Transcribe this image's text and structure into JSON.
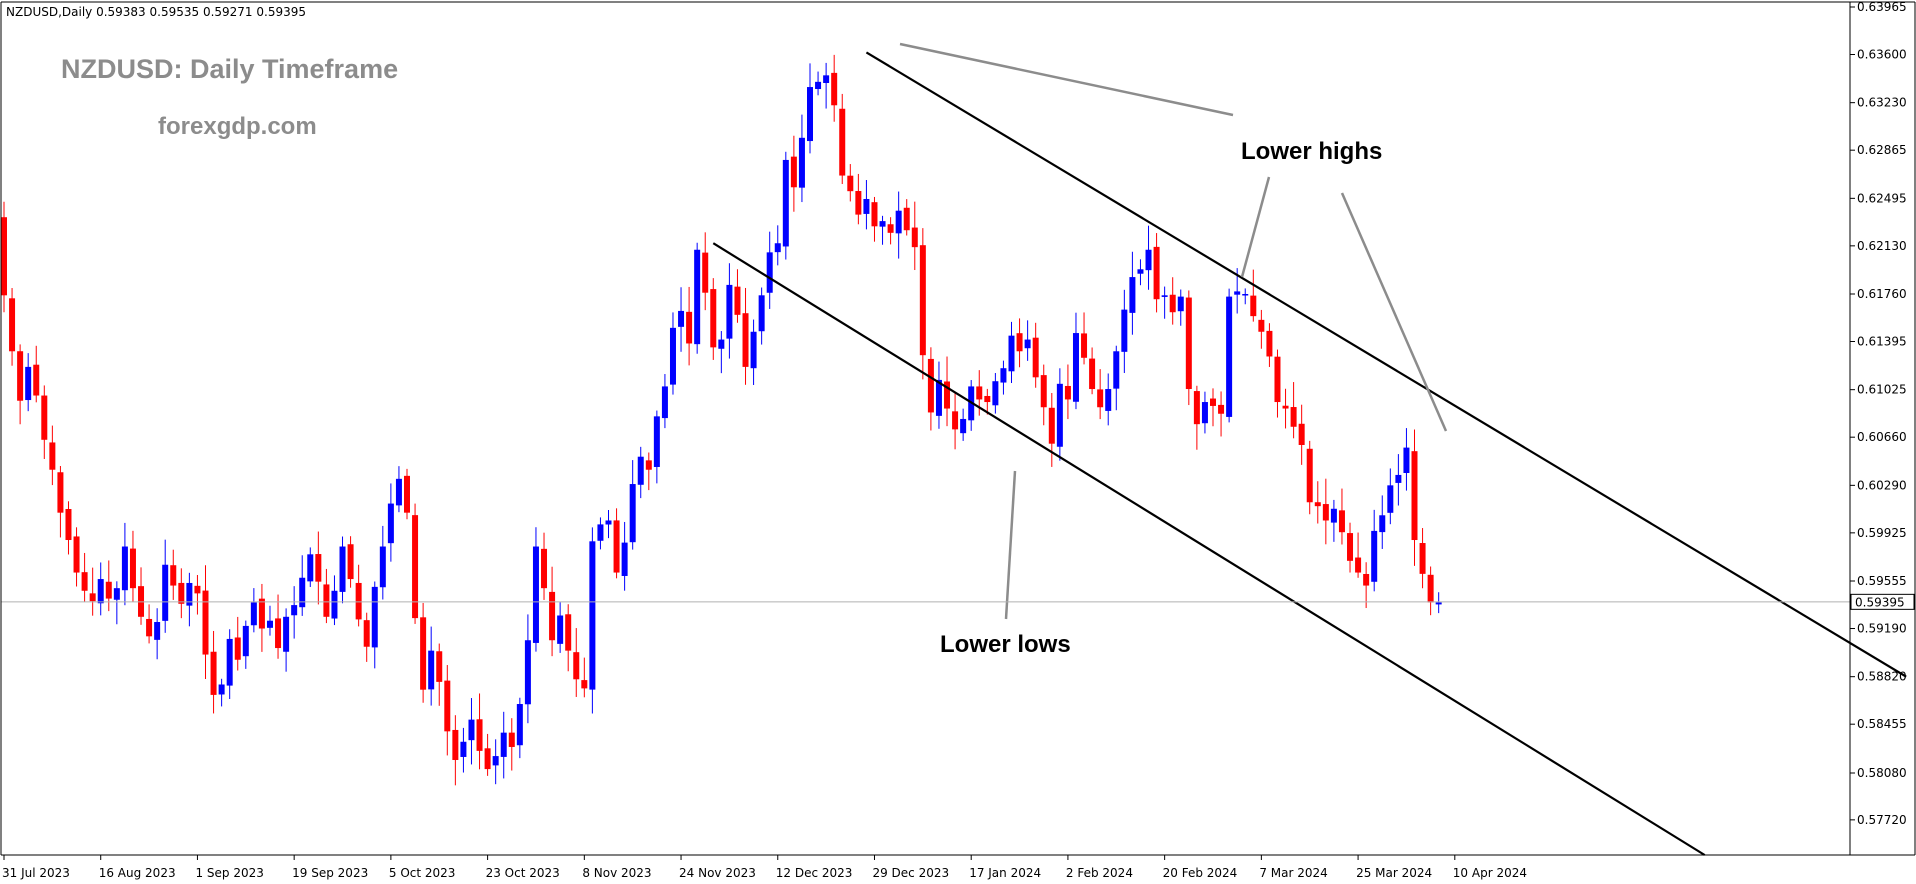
{
  "header": {
    "symbol_line": "NZDUSD,Daily  0.59383 0.59535 0.59271 0.59395"
  },
  "overlay": {
    "title": "NZDUSD: Daily Timeframe",
    "website": "forexgdp.com"
  },
  "chart_data": {
    "type": "candlestick",
    "symbol": "NZDUSD",
    "timeframe": "Daily",
    "ohlc_current": {
      "open": 0.59383,
      "high": 0.59535,
      "low": 0.59271,
      "close": 0.59395
    },
    "current_price_label": "0.59395",
    "ylim": [
      0.5745,
      0.63965
    ],
    "y_ticks": [
      "0.63965",
      "0.63600",
      "0.63230",
      "0.62865",
      "0.62495",
      "0.62130",
      "0.61760",
      "0.61395",
      "0.61025",
      "0.60660",
      "0.60290",
      "0.59925",
      "0.59555",
      "0.59190",
      "0.58820",
      "0.58455",
      "0.58080",
      "0.57720"
    ],
    "x_ticks": [
      {
        "label": "31 Jul 2023",
        "bar": 0
      },
      {
        "label": "16 Aug 2023",
        "bar": 12
      },
      {
        "label": "1 Sep 2023",
        "bar": 24
      },
      {
        "label": "19 Sep 2023",
        "bar": 36
      },
      {
        "label": "5 Oct 2023",
        "bar": 48
      },
      {
        "label": "23 Oct 2023",
        "bar": 60
      },
      {
        "label": "8 Nov 2023",
        "bar": 72
      },
      {
        "label": "24 Nov 2023",
        "bar": 84
      },
      {
        "label": "12 Dec 2023",
        "bar": 96
      },
      {
        "label": "29 Dec 2023",
        "bar": 108
      },
      {
        "label": "17 Jan 2024",
        "bar": 120
      },
      {
        "label": "2 Feb 2024",
        "bar": 132
      },
      {
        "label": "20 Feb 2024",
        "bar": 144
      },
      {
        "label": "7 Mar 2024",
        "bar": 156
      },
      {
        "label": "25 Mar 2024",
        "bar": 168
      },
      {
        "label": "10 Apr 2024",
        "bar": 180
      }
    ],
    "closes": [
      0.6175,
      0.6132,
      0.6094,
      0.612,
      0.6098,
      0.6064,
      0.6041,
      0.6008,
      0.5987,
      0.5962,
      0.5948,
      0.594,
      0.5957,
      0.5942,
      0.595,
      0.5982,
      0.595,
      0.5928,
      0.5913,
      0.5924,
      0.5968,
      0.5952,
      0.5938,
      0.5954,
      0.5946,
      0.5899,
      0.5868,
      0.5876,
      0.5911,
      0.5895,
      0.5921,
      0.5939,
      0.5919,
      0.5925,
      0.5904,
      0.5928,
      0.5937,
      0.5958,
      0.5976,
      0.5955,
      0.5928,
      0.5948,
      0.5982,
      0.5957,
      0.5926,
      0.5905,
      0.5951,
      0.5982,
      0.6015,
      0.6034,
      0.6008,
      0.5927,
      0.5872,
      0.5902,
      0.5878,
      0.584,
      0.5818,
      0.5832,
      0.5849,
      0.5825,
      0.5811,
      0.5821,
      0.5839,
      0.5828,
      0.5861,
      0.591,
      0.5982,
      0.595,
      0.591,
      0.5929,
      0.5902,
      0.588,
      0.5873,
      0.5986,
      0.5999,
      0.6002,
      0.5962,
      0.5985,
      0.603,
      0.6051,
      0.6041,
      0.6082,
      0.6105,
      0.615,
      0.6163,
      0.6138,
      0.621,
      0.6177,
      0.6135,
      0.6141,
      0.6183,
      0.616,
      0.612,
      0.6147,
      0.6175,
      0.6208,
      0.6215,
      0.6279,
      0.6258,
      0.6296,
      0.6335,
      0.6339,
      0.6344,
      0.6321,
      0.6267,
      0.6255,
      0.6237,
      0.6249,
      0.6228,
      0.6232,
      0.6223,
      0.624,
      0.6225,
      0.6212,
      0.6129,
      0.6085,
      0.611,
      0.6088,
      0.6072,
      0.608,
      0.6105,
      0.6095,
      0.6093,
      0.6109,
      0.6119,
      0.6144,
      0.6132,
      0.6141,
      0.6112,
      0.6089,
      0.6061,
      0.6107,
      0.6095,
      0.6146,
      0.6127,
      0.6103,
      0.6089,
      0.6103,
      0.6132,
      0.6164,
      0.6189,
      0.6195,
      0.621,
      0.6172,
      0.6175,
      0.6162,
      0.6174,
      0.6103,
      0.6076,
      0.6093,
      0.609,
      0.6084,
      0.6174,
      0.6178,
      0.6176,
      0.6159,
      0.6147,
      0.6128,
      0.6093,
      0.6088,
      0.6074,
      0.606,
      0.6016,
      0.6013,
      0.6002,
      0.6011,
      0.5993,
      0.5971,
      0.5962,
      0.5952,
      0.5994,
      0.6006,
      0.6029,
      0.6037,
      0.6058,
      0.5987,
      0.5961,
      0.5939,
      0.5939
    ],
    "trendlines": [
      {
        "label": "upper-channel",
        "p1": {
          "bar": 107,
          "price": 0.63616
        },
        "p2": {
          "bar": 236,
          "price": 0.5882
        }
      },
      {
        "label": "lower-channel",
        "p1": {
          "bar": 88,
          "price": 0.6215
        },
        "p2": {
          "bar": 211,
          "price": 0.5745
        }
      }
    ],
    "annotations": [
      {
        "text": "Lower highs",
        "pointers": 3
      },
      {
        "text": "Lower lows",
        "pointers": 1
      }
    ],
    "colors": {
      "bull": "#0000ff",
      "bear": "#ff0000",
      "line": "#000000",
      "pointer": "#8c8c8c",
      "bid_line": "#b0b0b0"
    },
    "grid": false
  }
}
